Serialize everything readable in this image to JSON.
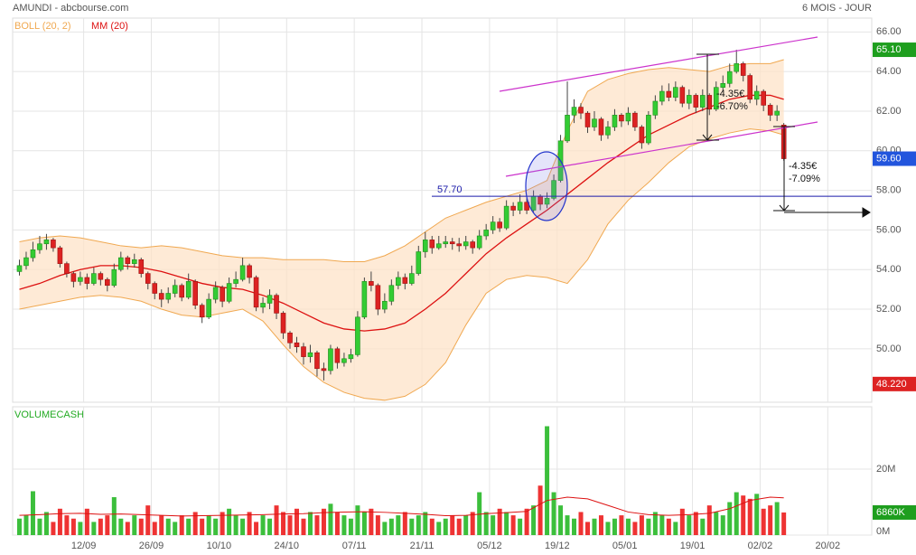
{
  "header": {
    "title": "AMUNDI - abcbourse.com",
    "period": "6 MOIS - JOUR"
  },
  "chart_data": [
    {
      "type": "candlestick",
      "xlim": [
        -1,
        126
      ],
      "ylim": [
        47.3,
        66.7
      ],
      "xticks": [
        {
          "value": 9.5,
          "label": "12/09"
        },
        {
          "value": 19.5,
          "label": "26/09"
        },
        {
          "value": 29.5,
          "label": "10/10"
        },
        {
          "value": 39.5,
          "label": "24/10"
        },
        {
          "value": 49.5,
          "label": "07/11"
        },
        {
          "value": 59.5,
          "label": "21/11"
        },
        {
          "value": 69.5,
          "label": "05/12"
        },
        {
          "value": 79.5,
          "label": "19/12"
        },
        {
          "value": 89.5,
          "label": "05/01"
        },
        {
          "value": 99.5,
          "label": "19/01"
        },
        {
          "value": 109.5,
          "label": "02/02"
        },
        {
          "value": 119.5,
          "label": "20/02"
        }
      ],
      "yticks": [
        {
          "value": 66,
          "label": "66.00"
        },
        {
          "value": 64,
          "label": "64.00"
        },
        {
          "value": 62,
          "label": "62.00"
        },
        {
          "value": 60,
          "label": "60.00"
        },
        {
          "value": 58,
          "label": "58.00"
        },
        {
          "value": 56,
          "label": "56.00"
        },
        {
          "value": 54,
          "label": "54.00"
        },
        {
          "value": 52,
          "label": "52.00"
        },
        {
          "value": 50,
          "label": "50.00"
        }
      ],
      "grid": true,
      "up_color": "#33cc33",
      "down_color": "#dd2222",
      "open": [
        53.9,
        54.2,
        54.6,
        55.0,
        55.3,
        55.5,
        55.1,
        54.3,
        53.8,
        53.4,
        53.6,
        53.3,
        53.8,
        53.5,
        53.2,
        54.0,
        54.6,
        54.3,
        54.5,
        53.8,
        53.3,
        52.8,
        52.5,
        52.8,
        53.2,
        52.6,
        53.4,
        52.2,
        51.6,
        52.5,
        53.1,
        52.4,
        53.3,
        53.5,
        54.2,
        53.6,
        52.1,
        52.3,
        52.7,
        51.8,
        50.8,
        50.3,
        50.1,
        49.6,
        49.8,
        49.0,
        48.9,
        50.0,
        49.3,
        49.5,
        49.7,
        51.6,
        53.4,
        53.2,
        52.0,
        52.4,
        53.2,
        53.6,
        53.3,
        53.8,
        54.9,
        55.5,
        55.1,
        55.3,
        55.4,
        55.3,
        55.2,
        55.4,
        55.1,
        55.7,
        56.0,
        56.4,
        56.1,
        57.2,
        57.0,
        57.4,
        57.0,
        57.7,
        57.3,
        57.6,
        58.5,
        60.5,
        61.8,
        62.2,
        61.9,
        61.2,
        61.6,
        60.8,
        61.2,
        61.8,
        61.5,
        61.9,
        61.2,
        60.4,
        61.8,
        62.5,
        63.0,
        62.7,
        63.2,
        62.4,
        62.8,
        62.2,
        62.8,
        62.1,
        63.2,
        63.4,
        64.0,
        64.4,
        63.8,
        62.6,
        63.0,
        62.3,
        61.8,
        61.3
      ],
      "high": [
        54.5,
        54.9,
        55.4,
        55.7,
        55.8,
        55.6,
        55.2,
        54.4,
        53.9,
        53.9,
        53.8,
        54.1,
        53.9,
        53.6,
        54.3,
        54.9,
        54.7,
        54.8,
        54.6,
        53.9,
        53.4,
        53.0,
        53.1,
        53.5,
        53.3,
        53.8,
        53.5,
        52.3,
        52.8,
        53.4,
        53.2,
        53.6,
        53.9,
        54.6,
        54.3,
        53.7,
        52.6,
        53.0,
        52.8,
        51.9,
        50.9,
        50.6,
        50.3,
        50.2,
        49.9,
        49.3,
        50.2,
        50.1,
        49.8,
        50.0,
        51.9,
        53.6,
        53.9,
        53.3,
        52.8,
        53.5,
        53.9,
        53.8,
        54.2,
        55.2,
        55.9,
        55.7,
        55.7,
        55.7,
        55.6,
        55.6,
        55.7,
        55.5,
        56.0,
        56.3,
        56.7,
        56.6,
        57.5,
        57.4,
        57.8,
        57.6,
        58.0,
        57.8,
        57.9,
        58.8,
        60.8,
        63.5,
        62.6,
        62.4,
        62.0,
        62.0,
        61.7,
        61.5,
        62.1,
        61.9,
        62.2,
        62.0,
        61.3,
        62.0,
        62.8,
        63.3,
        63.4,
        63.5,
        63.3,
        63.1,
        62.9,
        63.1,
        62.9,
        63.5,
        63.8,
        64.4,
        65.1,
        64.5,
        63.9,
        63.3,
        63.1,
        62.4,
        62.3,
        61.4
      ],
      "low": [
        53.7,
        54.0,
        54.4,
        54.8,
        55.0,
        54.9,
        54.1,
        53.6,
        53.1,
        53.2,
        53.0,
        53.2,
        53.2,
        52.9,
        53.1,
        53.9,
        54.0,
        54.1,
        53.6,
        53.0,
        52.5,
        52.1,
        52.3,
        52.6,
        52.4,
        52.5,
        52.0,
        51.3,
        51.5,
        52.3,
        52.1,
        52.3,
        53.1,
        53.4,
        53.3,
        51.9,
        51.8,
        52.0,
        51.5,
        50.5,
        50.0,
        49.8,
        49.2,
        49.3,
        48.6,
        48.4,
        48.7,
        49.0,
        49.1,
        49.3,
        49.6,
        51.5,
        52.9,
        51.7,
        51.8,
        52.2,
        53.0,
        53.0,
        53.2,
        53.7,
        54.6,
        54.8,
        55.0,
        55.1,
        55.0,
        54.9,
        55.0,
        54.8,
        55.0,
        55.5,
        55.8,
        55.9,
        56.0,
        56.7,
        56.8,
        56.8,
        56.9,
        57.0,
        57.1,
        57.5,
        58.4,
        60.4,
        61.4,
        61.6,
        60.9,
        61.0,
        60.5,
        60.6,
        61.0,
        61.2,
        61.3,
        61.0,
        60.1,
        60.3,
        61.6,
        62.3,
        62.5,
        62.5,
        62.2,
        62.1,
        61.9,
        62.0,
        61.8,
        62.0,
        63.0,
        63.2,
        63.9,
        63.5,
        62.4,
        62.3,
        62.0,
        61.5,
        61.5,
        59.5
      ],
      "close": [
        54.2,
        54.6,
        55.0,
        55.3,
        55.5,
        55.1,
        54.3,
        53.8,
        53.4,
        53.6,
        53.3,
        53.8,
        53.5,
        53.2,
        54.0,
        54.6,
        54.3,
        54.5,
        53.8,
        53.3,
        52.8,
        52.5,
        52.8,
        53.2,
        52.6,
        53.4,
        52.2,
        51.6,
        52.5,
        53.1,
        52.4,
        53.3,
        53.5,
        54.2,
        53.6,
        52.1,
        52.3,
        52.7,
        51.8,
        50.8,
        50.3,
        50.1,
        49.6,
        49.8,
        49.0,
        48.9,
        50.0,
        49.3,
        49.5,
        49.7,
        51.6,
        53.4,
        53.2,
        52.0,
        52.4,
        53.2,
        53.6,
        53.3,
        53.8,
        54.9,
        55.5,
        55.1,
        55.3,
        55.4,
        55.3,
        55.2,
        55.4,
        55.1,
        55.7,
        56.0,
        56.4,
        56.1,
        57.2,
        57.0,
        57.4,
        57.0,
        57.7,
        57.3,
        57.6,
        58.5,
        60.5,
        61.8,
        62.2,
        61.9,
        61.2,
        61.6,
        60.8,
        61.2,
        61.8,
        61.5,
        61.9,
        61.2,
        60.4,
        61.8,
        62.5,
        63.0,
        62.7,
        63.2,
        62.4,
        62.8,
        62.2,
        62.8,
        62.1,
        63.2,
        63.4,
        64.0,
        64.4,
        63.8,
        62.6,
        63.0,
        62.3,
        61.8,
        62.0,
        59.6
      ],
      "line_x": [
        0,
        3,
        6,
        9,
        12,
        15,
        18,
        21,
        24,
        27,
        30,
        33,
        36,
        39,
        42,
        45,
        48,
        51,
        54,
        57,
        60,
        63,
        66,
        69,
        72,
        75,
        78,
        81,
        84,
        87,
        90,
        93,
        96,
        99,
        102,
        105,
        108,
        111,
        113
      ],
      "bands": {
        "name": "BOLL (20, 2)",
        "color": "#f0a850",
        "fill": "#fde3c8",
        "upper": [
          55.4,
          55.6,
          55.7,
          55.6,
          55.4,
          55.2,
          55.1,
          55.2,
          55.1,
          54.9,
          54.7,
          54.6,
          54.6,
          54.5,
          54.5,
          54.5,
          54.4,
          54.4,
          54.7,
          55.2,
          55.9,
          56.6,
          57.0,
          57.4,
          57.7,
          58.0,
          58.5,
          61.0,
          63.0,
          63.6,
          63.9,
          64.1,
          64.2,
          64.1,
          64.0,
          64.3,
          64.4,
          64.4,
          64.6
        ],
        "lower": [
          52.0,
          52.2,
          52.4,
          52.6,
          52.7,
          52.6,
          52.4,
          52.0,
          51.7,
          51.6,
          51.8,
          52.0,
          51.4,
          50.2,
          49.1,
          48.3,
          47.8,
          47.5,
          47.4,
          47.6,
          48.2,
          49.3,
          51.2,
          52.8,
          53.5,
          53.7,
          53.6,
          53.3,
          54.5,
          56.3,
          57.5,
          58.4,
          59.4,
          60.2,
          60.6,
          60.9,
          61.1,
          61.0,
          60.8
        ]
      },
      "series": [
        {
          "name": "MM (20)",
          "color": "#dd1111",
          "values": [
            53.0,
            53.3,
            53.7,
            54.0,
            54.2,
            54.2,
            54.1,
            53.9,
            53.6,
            53.3,
            53.1,
            53.0,
            52.7,
            52.3,
            51.8,
            51.3,
            51.0,
            50.9,
            51.0,
            51.3,
            52.0,
            52.8,
            53.8,
            54.8,
            55.6,
            56.3,
            57.0,
            57.8,
            58.6,
            59.4,
            60.1,
            60.8,
            61.3,
            61.8,
            62.2,
            62.6,
            62.8,
            62.8,
            62.6
          ]
        }
      ],
      "level": {
        "value": 57.7,
        "label": "57.70",
        "color": "#1a1aaa"
      },
      "markers": [
        {
          "value": 65.1,
          "label": "65.10",
          "color": "#1e9e1e"
        },
        {
          "value": 59.6,
          "label": "59.60",
          "color": "#2255dd"
        },
        {
          "value": 48.22,
          "label": "48.220",
          "color": "#dd2222"
        }
      ],
      "annotations": [
        "-4.35€",
        "-6.70%",
        "-4.35€",
        "-7.09%"
      ]
    },
    {
      "type": "bar",
      "title": "VOLUMECASH",
      "title_color": "#22aa22",
      "ylim": [
        0,
        38.9
      ],
      "yticks": [
        {
          "value": 20,
          "label": "20M"
        },
        {
          "value": 0,
          "label": "0M"
        }
      ],
      "values": [
        5,
        6,
        13.3,
        5,
        7,
        4,
        8,
        6,
        5,
        4,
        8,
        4,
        5,
        6,
        11.5,
        5,
        4,
        6,
        5,
        9,
        4,
        6,
        5,
        4,
        6,
        5,
        7,
        5,
        6,
        5,
        7,
        8,
        6,
        5,
        7,
        4,
        6,
        5,
        9,
        7,
        6,
        8,
        5,
        7,
        6,
        8,
        9.5,
        7,
        6,
        5,
        9,
        7,
        8,
        6,
        4,
        5,
        6,
        7,
        5,
        6,
        7,
        5,
        4,
        5,
        6,
        5,
        6,
        7,
        13,
        7,
        6,
        8,
        7,
        6,
        5,
        8,
        9,
        15,
        33,
        13,
        9,
        6,
        5,
        7,
        4,
        5,
        6,
        4,
        5,
        6,
        5,
        4,
        6,
        5,
        7,
        6,
        5,
        4,
        8,
        6,
        7,
        5,
        9,
        7,
        6,
        10,
        13,
        12,
        11,
        12.5,
        8,
        9,
        10,
        6.86
      ],
      "line_x": [
        0,
        3,
        6,
        9,
        12,
        15,
        18,
        21,
        24,
        27,
        30,
        33,
        36,
        39,
        42,
        45,
        48,
        51,
        54,
        57,
        60,
        63,
        66,
        69,
        72,
        75,
        78,
        81,
        84,
        87,
        90,
        93,
        96,
        99,
        102,
        105,
        108,
        111,
        113
      ],
      "line_values": [
        6,
        6.2,
        6.5,
        6.6,
        6.3,
        6.4,
        6.2,
        6.0,
        5.8,
        5.9,
        6.0,
        6.1,
        6.2,
        6.4,
        6.5,
        6.8,
        7.0,
        7.1,
        6.9,
        6.6,
        6.3,
        5.9,
        6.0,
        6.5,
        6.8,
        7.2,
        10.5,
        11.5,
        11.0,
        9.0,
        7.0,
        6.2,
        6.0,
        6.2,
        6.6,
        8.0,
        10.5,
        11.5,
        11.3
      ],
      "line_color": "#dd1111",
      "markers": [
        {
          "value": 6.86,
          "label": "6860K",
          "color": "#1e9e1e"
        }
      ]
    }
  ]
}
